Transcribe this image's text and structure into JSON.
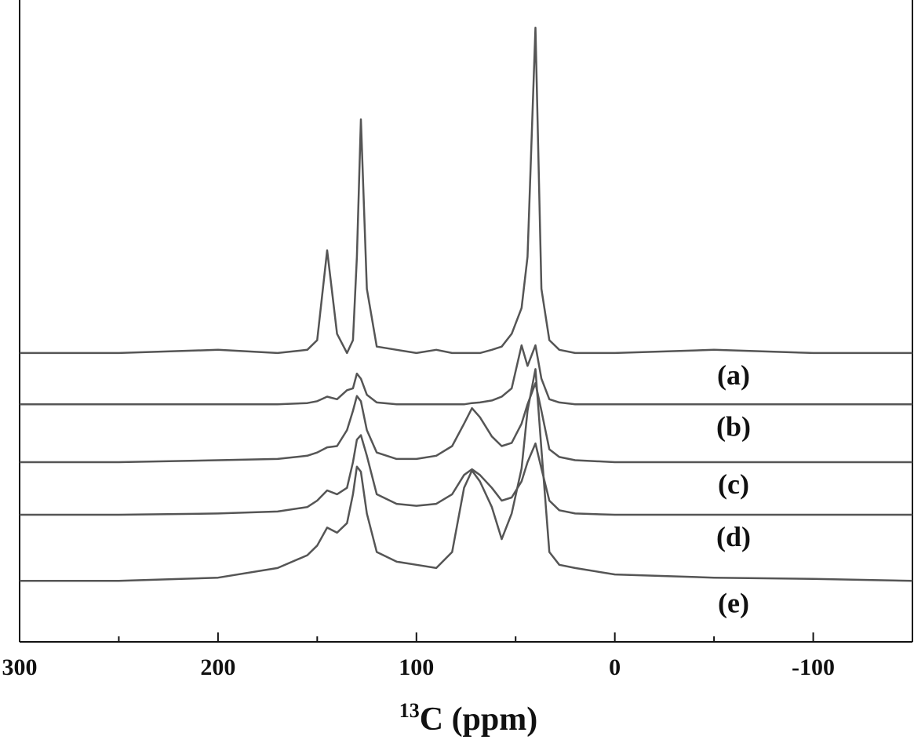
{
  "chart_data": {
    "type": "line",
    "x_label_sup": "13",
    "x_label": "C (ppm)",
    "x": [
      300,
      250,
      200,
      170,
      155,
      150,
      145,
      140,
      135,
      132,
      130,
      128,
      125,
      120,
      110,
      100,
      90,
      82,
      76,
      72,
      68,
      62,
      57,
      52,
      47,
      44,
      40,
      37,
      33,
      28,
      20,
      0,
      -50,
      -100,
      -150
    ],
    "series": [
      {
        "name": "(a)",
        "color": "#555555",
        "values": [
          45,
          45,
          45.5,
          45,
          45.5,
          47,
          61,
          48,
          45,
          47,
          60,
          81.4,
          55,
          46,
          45.5,
          45,
          45.5,
          45,
          45,
          45,
          45,
          45.5,
          46,
          48,
          52,
          60,
          95.7,
          55,
          47,
          45.5,
          45,
          45,
          45.5,
          45,
          45
        ]
      },
      {
        "name": "(b)",
        "color": "#555555",
        "values": [
          37,
          37,
          37,
          37,
          37.2,
          37.5,
          38.2,
          37.8,
          39.2,
          39.5,
          41.8,
          41,
          38.5,
          37.3,
          37,
          37,
          37,
          37,
          37,
          37.2,
          37.3,
          37.6,
          38.2,
          39.5,
          46.2,
          43,
          46.2,
          41,
          37.8,
          37.3,
          37,
          37,
          37,
          37,
          37
        ]
      },
      {
        "name": "(c)",
        "color": "#555555",
        "values": [
          28,
          28,
          28.3,
          28.5,
          29,
          29.5,
          30.3,
          30.5,
          33,
          36,
          38.3,
          37.5,
          33,
          29.5,
          28.5,
          28.5,
          29,
          30.5,
          34,
          36.4,
          35,
          32,
          30.5,
          31,
          34,
          37,
          40.3,
          36,
          30,
          28.8,
          28.3,
          28,
          28,
          28,
          28
        ]
      },
      {
        "name": "(d)",
        "color": "#555555",
        "values": [
          19.8,
          19.8,
          20,
          20.3,
          21,
          22,
          23.6,
          23,
          24,
          28,
          31.5,
          32.2,
          29,
          23,
          21.5,
          21.2,
          21.5,
          23,
          26,
          26.9,
          26,
          24,
          22,
          22.5,
          25,
          28,
          30.9,
          27,
          22,
          20.5,
          20,
          19.8,
          19.8,
          19.8,
          19.8
        ]
      },
      {
        "name": "(e)",
        "color": "#555555",
        "values": [
          9.5,
          9.5,
          10,
          11.5,
          13.5,
          15,
          17.8,
          17,
          18.5,
          23,
          27.3,
          26.5,
          20,
          14,
          12.5,
          12,
          11.5,
          14,
          24,
          26.7,
          25,
          21,
          16,
          20,
          27,
          36,
          42.5,
          30,
          14,
          12,
          11.5,
          10.5,
          10,
          9.8,
          9.5
        ]
      }
    ],
    "xlim": [
      300,
      -150
    ],
    "xticks": [
      300,
      200,
      100,
      0,
      -100
    ],
    "xminor_ticks": [
      250,
      150,
      50,
      -50
    ],
    "ylim": [
      0,
      100
    ]
  }
}
